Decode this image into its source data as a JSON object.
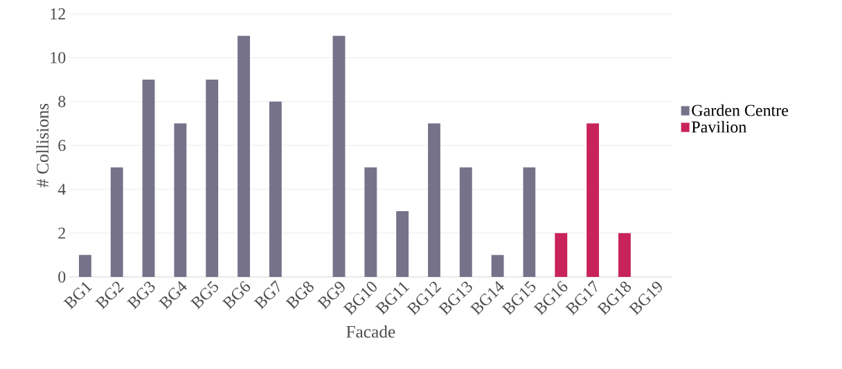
{
  "chart_data": {
    "type": "bar",
    "xlabel": "Facade",
    "ylabel": "# Collisions",
    "categories": [
      "BG1",
      "BG2",
      "BG3",
      "BG4",
      "BG5",
      "BG6",
      "BG7",
      "BG8",
      "BG9",
      "BG10",
      "BG11",
      "BG12",
      "BG13",
      "BG14",
      "BG15",
      "BG16",
      "BG17",
      "BG18",
      "BG19"
    ],
    "series": [
      {
        "name": "Garden Centre",
        "color": "#76728a",
        "values": [
          1,
          5,
          9,
          7,
          9,
          11,
          8,
          0,
          11,
          5,
          3,
          7,
          5,
          1,
          5,
          null,
          null,
          null,
          null
        ]
      },
      {
        "name": "Pavilion",
        "color": "#c8235a",
        "values": [
          null,
          null,
          null,
          null,
          null,
          null,
          null,
          null,
          null,
          null,
          null,
          null,
          null,
          null,
          null,
          2,
          7,
          2,
          0
        ]
      }
    ],
    "ylim": [
      0,
      12
    ],
    "yticks": [
      0,
      2,
      4,
      6,
      8,
      10,
      12
    ],
    "grid": "y",
    "legend": "right"
  }
}
